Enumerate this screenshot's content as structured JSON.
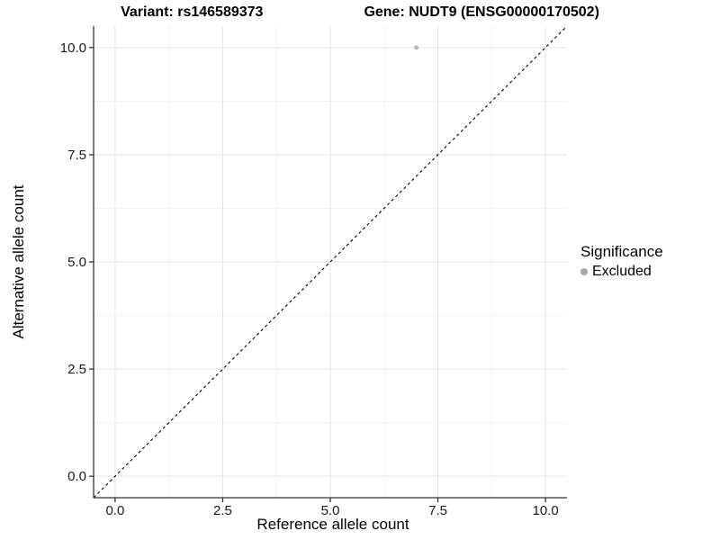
{
  "chart_data": {
    "type": "scatter",
    "title_variant": "Variant: rs146589373",
    "title_gene": "Gene: NUDT9 (ENSG00000170502)",
    "xlabel": "Reference allele count",
    "ylabel": "Alternative allele count",
    "xlim": [
      -0.5,
      10.5
    ],
    "ylim": [
      -0.5,
      10.5
    ],
    "x_ticks": [
      0,
      2.5,
      5,
      7.5,
      10
    ],
    "x_tick_labels": [
      "0.0",
      "2.5",
      "5.0",
      "7.5",
      "10.0"
    ],
    "y_ticks": [
      0,
      2.5,
      5,
      7.5,
      10
    ],
    "y_tick_labels": [
      "0.0",
      "2.5",
      "5.0",
      "7.5",
      "10.0"
    ],
    "grid": "on",
    "points": [
      {
        "x": 7,
        "y": 10,
        "series": "Excluded"
      }
    ],
    "identity_line": {
      "style": "dashed",
      "from": -0.5,
      "to": 10.5
    },
    "legend": {
      "title": "Significance",
      "position": "right",
      "items": [
        {
          "label": "Excluded",
          "color": "#a8a8a8"
        }
      ]
    },
    "colors": {
      "point_excluded": "#b8b8b8",
      "grid_major": "#e3e3e3",
      "grid_minor": "#f1f1f1",
      "axis_line": "#333333",
      "tick_label": "#1a1a1a",
      "identity_line": "#000000"
    }
  }
}
